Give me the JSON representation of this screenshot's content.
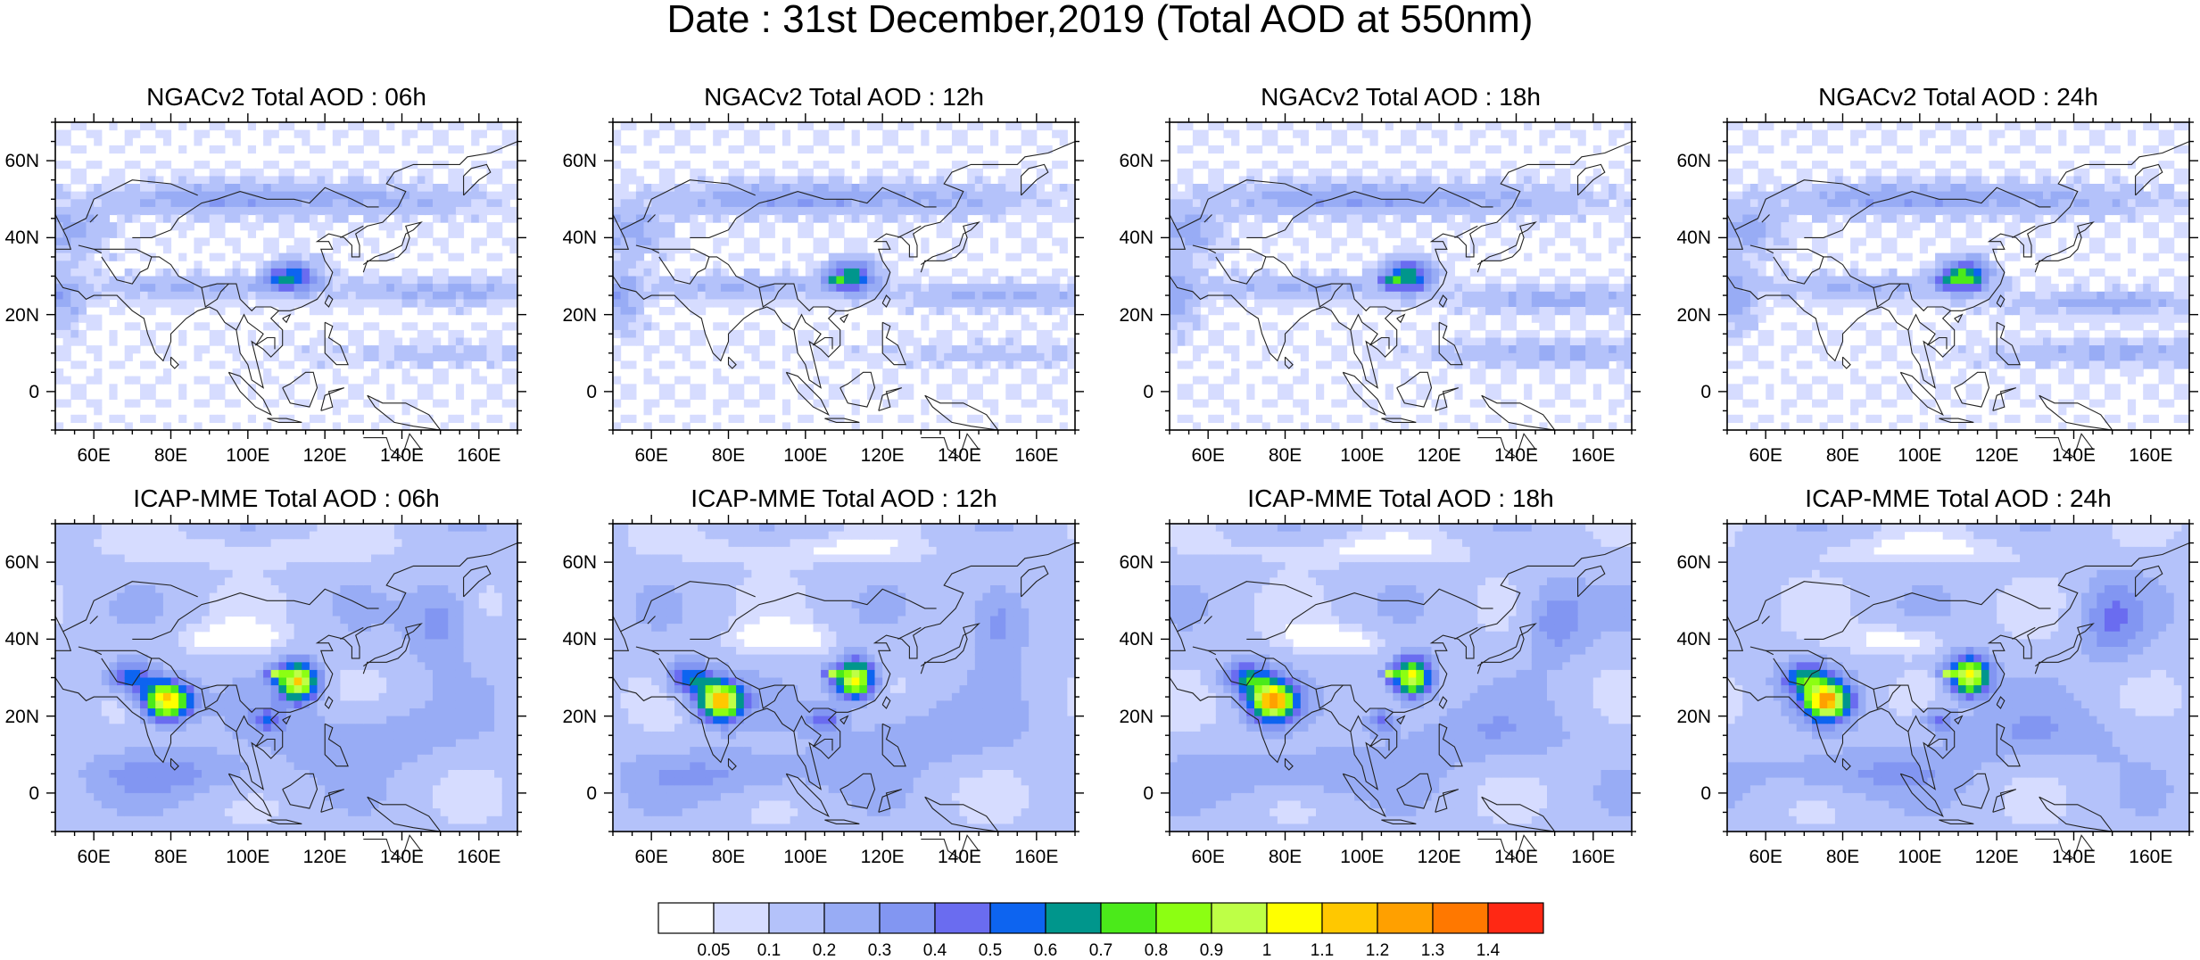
{
  "title": "Date : 31st December,2019 (Total AOD at 550nm)",
  "panels": [
    {
      "id": "ngac-06",
      "title": "NGACv2 Total AOD : 06h",
      "model": "ngac"
    },
    {
      "id": "ngac-12",
      "title": "NGACv2 Total AOD : 12h",
      "model": "ngac"
    },
    {
      "id": "ngac-18",
      "title": "NGACv2 Total AOD : 18h",
      "model": "ngac"
    },
    {
      "id": "ngac-24",
      "title": "NGACv2 Total AOD : 24h",
      "model": "ngac"
    },
    {
      "id": "icap-06",
      "title": "ICAP-MME Total AOD : 06h",
      "model": "icap"
    },
    {
      "id": "icap-12",
      "title": "ICAP-MME Total AOD : 12h",
      "model": "icap"
    },
    {
      "id": "icap-18",
      "title": "ICAP-MME Total AOD : 18h",
      "model": "icap"
    },
    {
      "id": "icap-24",
      "title": "ICAP-MME Total AOD : 24h",
      "model": "icap"
    }
  ],
  "map": {
    "lon_range": [
      50,
      170
    ],
    "lat_range": [
      -10,
      70
    ],
    "lon_ticks": [
      60,
      80,
      100,
      120,
      140,
      160
    ],
    "lon_tick_labels": [
      "60E",
      "80E",
      "100E",
      "120E",
      "140E",
      "160E"
    ],
    "lat_ticks": [
      0,
      20,
      40,
      60
    ],
    "lat_tick_labels": [
      "0",
      "20N",
      "40N",
      "60N"
    ]
  },
  "colorbar": {
    "labels": [
      "0.05",
      "0.1",
      "0.2",
      "0.3",
      "0.4",
      "0.5",
      "0.6",
      "0.7",
      "0.8",
      "0.9",
      "1",
      "1.1",
      "1.2",
      "1.3",
      "1.4"
    ],
    "colors": [
      "#ffffff",
      "#d6dcff",
      "#b4c2fa",
      "#98acf5",
      "#8296f2",
      "#6a6cf0",
      "#0d64f0",
      "#00968c",
      "#4bea1a",
      "#8cff12",
      "#beff46",
      "#ffff00",
      "#ffc800",
      "#ffa000",
      "#ff7800",
      "#ff2814"
    ]
  }
}
